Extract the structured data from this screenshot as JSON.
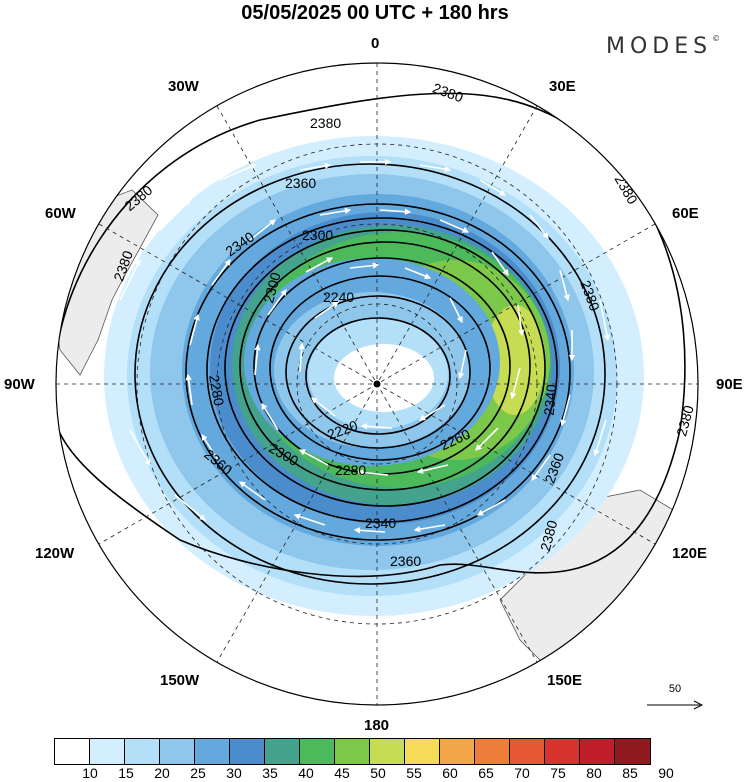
{
  "title": "05/05/2025  00 UTC  + 180 hrs",
  "brand": "MODES",
  "brand_mark": "©",
  "map": {
    "projection": "polar stereographic (south pole)",
    "longitude_labels": [
      "0",
      "30E",
      "60E",
      "90E",
      "120E",
      "150E",
      "180",
      "150W",
      "120W",
      "90W",
      "60W",
      "30W"
    ],
    "contour_labels": [
      "2380",
      "2360",
      "2340",
      "2300",
      "2280",
      "2260",
      "2240",
      "2220",
      "2300",
      "2340",
      "2360"
    ],
    "reference_vector": "50",
    "colors": {
      "land": "#ececec",
      "ocean": "#ffffff",
      "contour": "#000000",
      "wind_arrows": "#ffffff"
    }
  },
  "colorbar": {
    "ticks": [
      "10",
      "15",
      "20",
      "25",
      "30",
      "35",
      "40",
      "45",
      "50",
      "55",
      "60",
      "65",
      "70",
      "75",
      "80",
      "85",
      "90"
    ],
    "colors": [
      "#ffffff",
      "#d3efff",
      "#b3e0f8",
      "#8ec6ec",
      "#64a9de",
      "#4a8ccc",
      "#43a38c",
      "#4cb95a",
      "#7bc84a",
      "#c6dc52",
      "#f6db58",
      "#f3a748",
      "#ee7d3a",
      "#e45833",
      "#d7322c",
      "#c11e2c",
      "#8f1b1f"
    ]
  }
}
